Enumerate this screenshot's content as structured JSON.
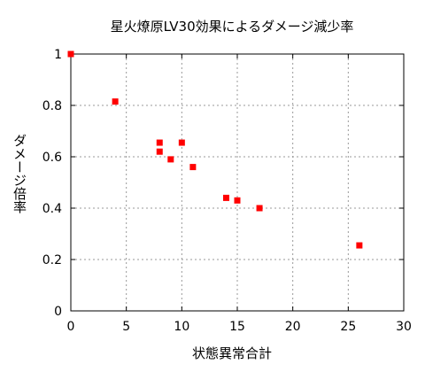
{
  "chart_data": {
    "type": "scatter",
    "title": "星火燎原LV30効果によるダメージ減少率",
    "xlabel": "状態異常合計",
    "ylabel": "ダメージ倍率",
    "xlim": [
      0,
      30
    ],
    "ylim": [
      0,
      1
    ],
    "xticks": [
      0,
      5,
      10,
      15,
      20,
      25,
      30
    ],
    "yticks": [
      0,
      0.2,
      0.4,
      0.6,
      0.8,
      1
    ],
    "xtick_labels": [
      "0",
      "5",
      "10",
      "15",
      "20",
      "25",
      "30"
    ],
    "ytick_labels": [
      "0",
      "0.2",
      "0.4",
      "0.6",
      "0.8",
      "1"
    ],
    "grid": true,
    "legend": "none",
    "marker_color": "#ff0000",
    "points": [
      {
        "x": 0,
        "y": 1.0
      },
      {
        "x": 4,
        "y": 0.815
      },
      {
        "x": 8,
        "y": 0.655
      },
      {
        "x": 8,
        "y": 0.62
      },
      {
        "x": 9,
        "y": 0.59
      },
      {
        "x": 10,
        "y": 0.655
      },
      {
        "x": 11,
        "y": 0.56
      },
      {
        "x": 14,
        "y": 0.44
      },
      {
        "x": 15,
        "y": 0.43
      },
      {
        "x": 17,
        "y": 0.4
      },
      {
        "x": 26,
        "y": 0.255
      }
    ]
  }
}
